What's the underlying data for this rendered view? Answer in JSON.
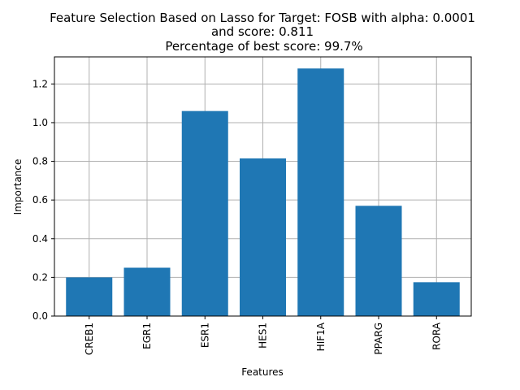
{
  "chart_data": {
    "type": "bar",
    "title_lines": [
      "Feature Selection Based on Lasso for Target: FOSB with alpha: 0.0001",
      "and score: 0.811",
      "Percentage of best score: 99.7%"
    ],
    "xlabel": "Features",
    "ylabel": "Importance",
    "categories": [
      "CREB1",
      "EGR1",
      "ESR1",
      "HES1",
      "HIF1A",
      "PPARG",
      "RORA"
    ],
    "values": [
      0.2,
      0.25,
      1.06,
      0.815,
      1.28,
      0.57,
      0.175
    ],
    "ylim": [
      0,
      1.34
    ],
    "yticks": [
      0.0,
      0.2,
      0.4,
      0.6,
      0.8,
      1.0,
      1.2
    ],
    "ytick_labels": [
      "0.0",
      "0.2",
      "0.4",
      "0.6",
      "0.8",
      "1.0",
      "1.2"
    ],
    "grid": true,
    "bar_color": "#1f77b4"
  }
}
